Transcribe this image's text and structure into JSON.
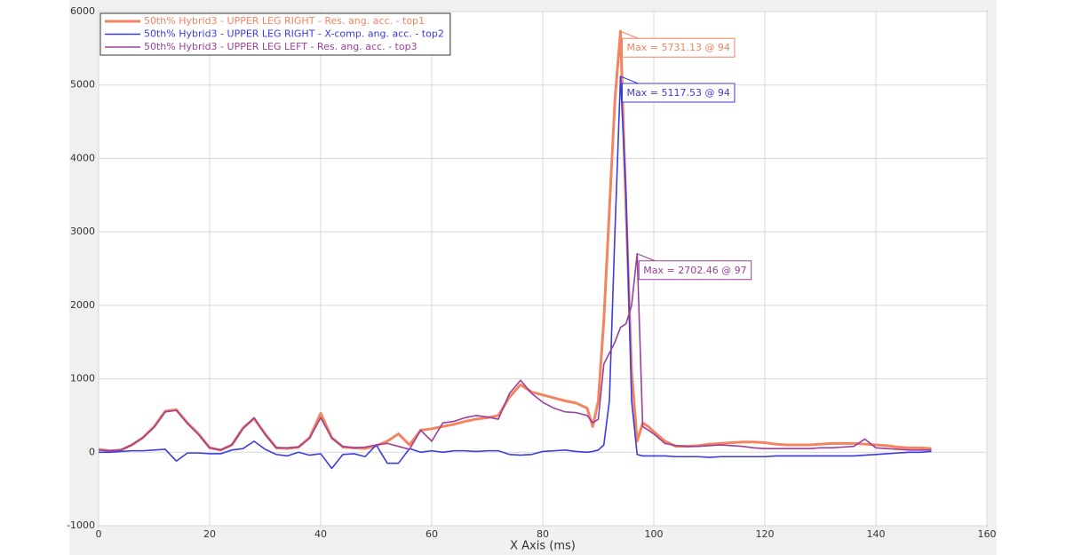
{
  "chart_data": {
    "type": "line",
    "x_label": "X Axis (ms)",
    "x": [
      0,
      2,
      4,
      6,
      8,
      10,
      12,
      14,
      16,
      18,
      20,
      22,
      24,
      26,
      28,
      30,
      32,
      34,
      36,
      38,
      40,
      42,
      44,
      46,
      48,
      50,
      52,
      54,
      56,
      58,
      60,
      62,
      64,
      66,
      68,
      70,
      72,
      74,
      76,
      78,
      80,
      82,
      84,
      86,
      88,
      89,
      90,
      91,
      92,
      93,
      94,
      95,
      96,
      97,
      98,
      99,
      100,
      102,
      104,
      106,
      108,
      110,
      112,
      114,
      116,
      118,
      120,
      122,
      124,
      126,
      128,
      130,
      132,
      134,
      136,
      138,
      140,
      142,
      144,
      146,
      148,
      150
    ],
    "series": [
      {
        "name": "50th% Hybrid3   - UPPER LEG RIGHT - Res. ang. acc. - top1",
        "color": "#f4845f",
        "width": 3,
        "values": [
          40,
          20,
          30,
          100,
          200,
          350,
          560,
          580,
          400,
          250,
          60,
          30,
          100,
          330,
          460,
          250,
          60,
          50,
          70,
          200,
          530,
          200,
          70,
          60,
          50,
          90,
          150,
          250,
          100,
          300,
          320,
          350,
          380,
          420,
          450,
          470,
          500,
          750,
          920,
          820,
          780,
          740,
          700,
          670,
          600,
          350,
          700,
          1800,
          3300,
          4800,
          5731.13,
          3300,
          1100,
          150,
          400,
          350,
          280,
          150,
          80,
          80,
          90,
          110,
          120,
          130,
          140,
          140,
          130,
          110,
          100,
          100,
          100,
          110,
          120,
          120,
          120,
          110,
          100,
          90,
          70,
          60,
          60,
          50
        ]
      },
      {
        "name": "50th% Hybrid3   - UPPER LEG RIGHT - X-comp. ang. acc. - top2",
        "color": "#3b3be0",
        "width": 1.6,
        "values": [
          0,
          0,
          10,
          20,
          20,
          30,
          40,
          -120,
          -10,
          -10,
          -20,
          -20,
          30,
          50,
          150,
          40,
          -30,
          -50,
          0,
          -40,
          -20,
          -220,
          -30,
          -20,
          -60,
          100,
          -150,
          -150,
          50,
          0,
          20,
          0,
          20,
          20,
          10,
          20,
          20,
          -30,
          -40,
          -30,
          10,
          20,
          30,
          10,
          0,
          10,
          30,
          100,
          700,
          3000,
          5117.53,
          3500,
          700,
          -30,
          -50,
          -50,
          -50,
          -50,
          -60,
          -60,
          -60,
          -70,
          -60,
          -60,
          -60,
          -60,
          -60,
          -50,
          -50,
          -50,
          -50,
          -50,
          -50,
          -50,
          -50,
          -40,
          -30,
          -20,
          -10,
          0,
          0,
          10
        ]
      },
      {
        "name": "50th% Hybrid3   - UPPER LEG LEFT - Res. ang. acc. - top3",
        "color": "#9b3f9b",
        "width": 1.6,
        "values": [
          30,
          20,
          30,
          100,
          200,
          340,
          550,
          570,
          390,
          240,
          60,
          30,
          100,
          320,
          470,
          240,
          60,
          60,
          70,
          190,
          470,
          190,
          80,
          60,
          70,
          100,
          120,
          80,
          40,
          300,
          150,
          400,
          420,
          470,
          500,
          480,
          450,
          800,
          980,
          800,
          680,
          600,
          550,
          540,
          500,
          400,
          450,
          1200,
          1350,
          1500,
          1700,
          1750,
          2000,
          2702.46,
          350,
          300,
          250,
          120,
          90,
          80,
          80,
          90,
          100,
          90,
          80,
          60,
          50,
          50,
          50,
          50,
          50,
          60,
          60,
          70,
          80,
          180,
          60,
          50,
          40,
          30,
          30,
          30
        ]
      }
    ],
    "annotations": [
      "Max = 5731.13  @ 94",
      "Max = 5117.53  @ 94",
      "Max = 2702.46  @ 97"
    ],
    "xlim": [
      0,
      160
    ],
    "xticks": [
      0,
      20,
      40,
      60,
      80,
      100,
      120,
      140,
      160
    ],
    "ylim": [
      -1000,
      6000
    ],
    "yticks": [
      -1000,
      0,
      1000,
      2000,
      3000,
      4000,
      5000,
      6000
    ],
    "grid": true,
    "legend": "top-left"
  }
}
